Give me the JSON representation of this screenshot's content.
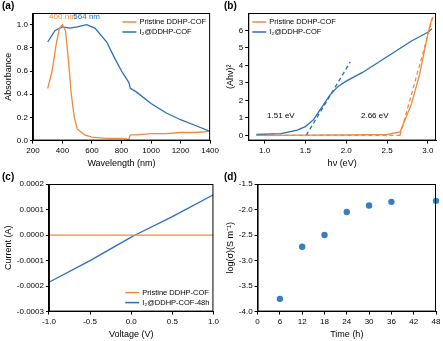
{
  "chart_data": [
    {
      "panel": "(a)",
      "type": "line",
      "x_label": "Wavelength (nm)",
      "y_label": "Absorbance",
      "xlim": [
        200,
        1400
      ],
      "xticks": [
        200,
        400,
        600,
        800,
        1000,
        1200,
        1400
      ],
      "ylim": [
        0,
        1.1
      ],
      "yticks": [
        {
          "value": 0,
          "label": "0.0"
        },
        {
          "value": 0.2,
          "label": "0.2"
        },
        {
          "value": 0.4,
          "label": "0.4"
        },
        {
          "value": 0.6,
          "label": "0.6"
        },
        {
          "value": 0.8,
          "label": "0.8"
        },
        {
          "value": 1.0,
          "label": "1.0"
        }
      ],
      "grid": false,
      "legend": "upper right",
      "series": [
        {
          "name": "Pristine DDHP-COF",
          "color": "#f08a3c",
          "x": [
            300,
            330,
            360,
            380,
            400,
            420,
            440,
            460,
            480,
            500,
            550,
            600,
            700,
            800,
            850,
            860,
            900,
            1000,
            1100,
            1200,
            1300,
            1400
          ],
          "values": [
            0.45,
            0.6,
            0.85,
            0.97,
            1.0,
            0.95,
            0.7,
            0.4,
            0.2,
            0.1,
            0.05,
            0.03,
            0.02,
            0.02,
            0.01,
            0.05,
            0.05,
            0.06,
            0.06,
            0.07,
            0.07,
            0.08
          ]
        },
        {
          "name": "I₂@DDHP-COF",
          "color": "#2a6fb8",
          "x": [
            300,
            350,
            400,
            450,
            500,
            564,
            620,
            700,
            750,
            800,
            850,
            860,
            900,
            1000,
            1100,
            1200,
            1300,
            1400
          ],
          "values": [
            0.85,
            0.95,
            0.98,
            0.97,
            0.98,
            1.0,
            0.97,
            0.85,
            0.72,
            0.6,
            0.5,
            0.45,
            0.42,
            0.32,
            0.24,
            0.18,
            0.13,
            0.08
          ]
        }
      ],
      "annotations": [
        {
          "text": "400 nm",
          "x": 400,
          "y": 1.03,
          "color": "#f08a3c"
        },
        {
          "text": "564 nm",
          "x": 564,
          "y": 1.03,
          "color": "#2a6fb8"
        }
      ]
    },
    {
      "panel": "(b)",
      "type": "line",
      "x_label": "hν (eV)",
      "y_label": "(Ahν)²",
      "xlim": [
        0.8,
        3.1
      ],
      "xticks": [
        {
          "value": 1.0,
          "label": "1.0"
        },
        1.5,
        {
          "value": 2.0,
          "label": "2.0"
        },
        2.5,
        {
          "value": 3.0,
          "label": "3.0"
        }
      ],
      "ylim": [
        -0.3,
        7
      ],
      "yticks": [
        0,
        1,
        2,
        3,
        4,
        5,
        6
      ],
      "grid": false,
      "legend": "upper left",
      "series": [
        {
          "name": "Pristine DDHP-COF",
          "color": "#f08a3c",
          "x": [
            0.9,
            1.5,
            2.0,
            2.5,
            2.66,
            2.8,
            2.9,
            3.0,
            3.05
          ],
          "values": [
            0,
            0.01,
            0.02,
            0.05,
            0.2,
            1.8,
            3.5,
            5.8,
            6.7
          ]
        },
        {
          "name": "I₂@DDHP-COF",
          "color": "#2a6fb8",
          "x": [
            0.9,
            1.2,
            1.4,
            1.5,
            1.6,
            1.7,
            1.8,
            1.9,
            2.0,
            2.2,
            2.4,
            2.6,
            2.8,
            3.0,
            3.05
          ],
          "values": [
            0.05,
            0.1,
            0.3,
            0.5,
            0.9,
            1.6,
            2.3,
            2.8,
            3.1,
            3.6,
            4.2,
            4.8,
            5.4,
            5.9,
            6.1
          ]
        },
        {
          "color": "#f08a3c",
          "line_style": "dashed",
          "x": [
            2.66,
            3.07
          ],
          "values": [
            0,
            6.9
          ]
        },
        {
          "color": "#2a6fb8",
          "line_style": "dashed",
          "x": [
            1.51,
            2.05
          ],
          "values": [
            0,
            4.2
          ]
        },
        {
          "color": "#f08a3c",
          "line_style": "dashed",
          "x": [
            0.9,
            2.7
          ],
          "values": [
            0,
            0
          ]
        }
      ],
      "annotations": [
        {
          "text": "1.51 eV",
          "x": 1.2,
          "y": 0.9,
          "color": "#000000"
        },
        {
          "text": "2.66 eV",
          "x": 2.35,
          "y": 0.9,
          "color": "#000000"
        }
      ]
    },
    {
      "panel": "(c)",
      "type": "line",
      "x_label": "Voltage (V)",
      "y_label": "Current (A)",
      "xlim": [
        -1,
        1
      ],
      "xticks": [
        {
          "value": -1,
          "label": "-1.0"
        },
        -0.5,
        {
          "value": 0,
          "label": "0.0"
        },
        0.5,
        {
          "value": 1,
          "label": "1.0"
        }
      ],
      "ylim": [
        -0.0003,
        0.0002
      ],
      "yticks": [
        -0.0003,
        -0.0002,
        -0.0001,
        {
          "value": 0,
          "label": "0.0000"
        },
        0.0001,
        0.0002
      ],
      "grid": false,
      "legend": "lower right",
      "series": [
        {
          "name": "Pristine DDHP-COF",
          "color": "#f08a3c",
          "x": [
            -1,
            1
          ],
          "values": [
            0,
            0
          ]
        },
        {
          "name": "I₂@DDHP-COF-48h",
          "color": "#2a6fb8",
          "x": [
            -1,
            -0.5,
            0,
            0.05,
            0.5,
            1
          ],
          "values": [
            -0.000185,
            -0.0001,
            -8e-06,
            0,
            7.2e-05,
            0.000158
          ]
        }
      ]
    },
    {
      "panel": "(d)",
      "type": "scatter",
      "x_label": "Time (h)",
      "y_label": "log(σ)(S m⁻¹)",
      "xlim": [
        0,
        48
      ],
      "xticks": [
        0,
        6,
        12,
        18,
        24,
        30,
        36,
        42,
        48
      ],
      "ylim": [
        -4.0,
        -1.5
      ],
      "yticks": [
        {
          "value": -4.0,
          "label": "-4.0"
        },
        -3.5,
        {
          "value": -3.0,
          "label": "-3.0"
        },
        -2.5,
        {
          "value": -2.0,
          "label": "-2.0"
        },
        -1.5
      ],
      "grid": false,
      "color": "#3a7dc0",
      "marker": "circle",
      "x": [
        6,
        12,
        18,
        24,
        30,
        36,
        48
      ],
      "values": [
        -3.75,
        -2.73,
        -2.5,
        -2.05,
        -1.92,
        -1.85,
        -1.83
      ]
    }
  ]
}
